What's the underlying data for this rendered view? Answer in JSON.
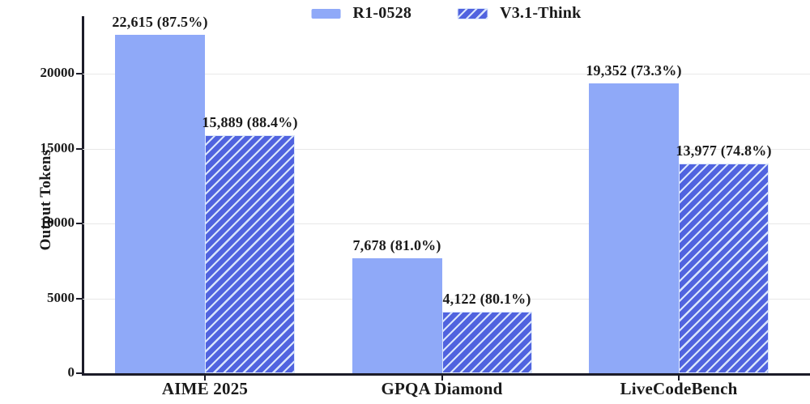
{
  "chart_data": {
    "type": "bar",
    "title": "",
    "ylabel": "Output Tokens",
    "xlabel": "",
    "categories": [
      "AIME 2025",
      "GPQA Diamond",
      "LiveCodeBench"
    ],
    "series": [
      {
        "name": "R1-0528",
        "style": "solid",
        "color": "#8FA9F8",
        "values": [
          22615,
          7678,
          19352
        ],
        "value_labels": [
          "22,615 (87.5%)",
          "7,678 (81.0%)",
          "19,352 (73.3%)"
        ]
      },
      {
        "name": "V3.1-Think",
        "style": "hatch-forward-diagonal",
        "color": "#5063DF",
        "hatch_color": "#DAE6FC",
        "values": [
          15889,
          4122,
          13977
        ],
        "value_labels": [
          "15,889 (88.4%)",
          "4,122 (80.1%)",
          "13,977 (74.8%)"
        ]
      }
    ],
    "yticks": [
      0,
      5000,
      10000,
      15000,
      20000
    ],
    "ylim": [
      0,
      24300
    ],
    "grid": "horizontal",
    "gridline_color": "#e8e8e8",
    "axis_color": "#1c1c28",
    "text_color": "#1a1a1a",
    "legend_position": "top-center"
  }
}
